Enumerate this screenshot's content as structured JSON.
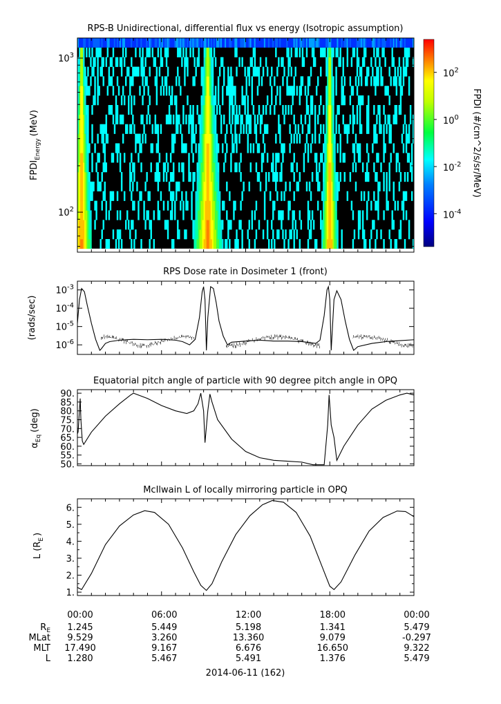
{
  "chart_data": [
    {
      "type": "heatmap",
      "title": "RPS-B  Unidirectional, differential flux vs energy (Isotropic assumption)",
      "ylabel_main": "FPDI",
      "ylabel_sub": "Energy",
      "ylabel_unit": "(MeV)",
      "yscale": "log",
      "ylim": [
        55,
        1350
      ],
      "yticks": [
        {
          "value": 100,
          "base": "10",
          "exp": "2"
        },
        {
          "value": 1000,
          "base": "10",
          "exp": "3"
        }
      ],
      "x_hours": [
        0,
        24
      ],
      "colorbar": {
        "label": "FPDI (#/cm^2/s/sr/MeV)",
        "scale": "log",
        "range_exp": [
          -5.4,
          3.4
        ],
        "ticks": [
          {
            "base": "10",
            "exp": "2",
            "value_exp": 2
          },
          {
            "base": "10",
            "exp": "0",
            "value_exp": 0
          },
          {
            "base": "10",
            "exp": "-2",
            "value_exp": -2
          },
          {
            "base": "10",
            "exp": "-4",
            "value_exp": -4
          }
        ]
      },
      "flux_features": [
        {
          "name": "",
          "start_hour": 0.0,
          "peak_hour": 0.3,
          "end_hour": 1.5
        },
        {
          "name": "",
          "start_hour": 8.2,
          "peak_hour": 9.3,
          "end_hour": 10.3
        },
        {
          "name": "",
          "start_hour": 17.5,
          "peak_hour": 18.0,
          "end_hour": 18.7
        }
      ]
    },
    {
      "type": "line",
      "title": "RPS  Dose rate in Dosimeter 1 (front)",
      "ylabel": "(rads/sec)",
      "yscale": "log",
      "ylim": [
        3e-07,
        0.003
      ],
      "yticks": [
        {
          "base": "10",
          "exp": "-6",
          "value_exp": -6
        },
        {
          "base": "10",
          "exp": "-5",
          "value_exp": -5
        },
        {
          "base": "10",
          "exp": "-4",
          "value_exp": -4
        },
        {
          "base": "10",
          "exp": "-3",
          "value_exp": -3
        }
      ],
      "x": [
        0,
        0.15,
        0.3,
        0.5,
        0.7,
        1.0,
        1.3,
        1.6,
        1.7,
        2.0,
        2.3,
        3,
        4,
        5,
        6,
        7,
        7.5,
        8.0,
        8.4,
        8.7,
        8.9,
        9.0,
        9.1,
        9.2,
        9.3,
        9.5,
        9.7,
        9.9,
        10.1,
        10.4,
        10.7,
        11.0,
        12,
        13,
        14,
        15,
        16,
        17.0,
        17.3,
        17.6,
        17.8,
        17.9,
        18.0,
        18.1,
        18.3,
        18.5,
        18.8,
        19.1,
        19.4,
        19.7,
        20,
        21,
        22,
        23,
        24
      ],
      "y": [
        1.5e-05,
        0.0003,
        0.0012,
        0.0008,
        0.00015,
        1.5e-05,
        2e-06,
        5e-07,
        6e-07,
        1.2e-06,
        1.5e-06,
        1.8e-06,
        2e-06,
        1.9e-06,
        2e-06,
        1.8e-06,
        1.5e-06,
        1e-06,
        2e-06,
        3e-05,
        0.0008,
        0.0015,
        0.0003,
        5e-07,
        3e-05,
        0.0015,
        0.0012,
        0.0002,
        2e-05,
        3e-06,
        1e-06,
        1.4e-06,
        1.6e-06,
        1.8e-06,
        1.6e-06,
        1.6e-06,
        1.5e-06,
        1.2e-06,
        1.8e-06,
        4e-05,
        0.001,
        0.0015,
        0.0003,
        5e-07,
        0.0003,
        0.0009,
        0.0003,
        2e-05,
        2e-06,
        5e-07,
        8e-07,
        1.2e-06,
        1.5e-06,
        1.7e-06,
        1.9e-06
      ]
    },
    {
      "type": "line",
      "title": "Equatorial pitch angle of particle with 90 degree pitch angle in OPQ",
      "ylabel_main": "α",
      "ylabel_sub": "Eq",
      "ylabel_unit": "(deg)",
      "ylim": [
        49,
        92
      ],
      "yticks": [
        50.0,
        55.0,
        60.0,
        65.0,
        70.0,
        75.0,
        80.0,
        85.0,
        90.0
      ],
      "ytick_labels": [
        "50.",
        "55.",
        "60.",
        "65.",
        "70.",
        "75.",
        "80.",
        "85.",
        "90."
      ],
      "x": [
        0,
        0.05,
        0.2,
        0.25,
        0.35,
        0.45,
        1.0,
        2.0,
        3.0,
        3.8,
        4.0,
        5.0,
        6.0,
        7.0,
        7.8,
        8.3,
        8.6,
        8.8,
        9.0,
        9.1,
        9.3,
        9.45,
        9.6,
        10.0,
        11.0,
        12.0,
        13.0,
        14.0,
        15.0,
        16.0,
        16.8,
        17.6,
        17.85,
        17.95,
        18.1,
        18.3,
        18.5,
        19.0,
        20.0,
        21.0,
        22.0,
        23.0,
        23.5,
        24.0
      ],
      "y": [
        67,
        68,
        87,
        75,
        63,
        61,
        68,
        77,
        84,
        89,
        90,
        87,
        83,
        80,
        78.5,
        80,
        84,
        90,
        80,
        62,
        80,
        89.5,
        85,
        75,
        64,
        57,
        53.5,
        52,
        51.5,
        51,
        49.5,
        49.5,
        72,
        89,
        72,
        65,
        52,
        60,
        72,
        81,
        86,
        89,
        90,
        89
      ]
    },
    {
      "type": "line",
      "title": "McIlwain L of locally mirroring particle in OPQ",
      "ylabel_main": "L (R",
      "ylabel_sub": "E",
      "ylabel_unit": ")",
      "ylim": [
        0.8,
        6.5
      ],
      "yticks": [
        1.0,
        2.0,
        3.0,
        4.0,
        5.0,
        6.0
      ],
      "ytick_labels": [
        "1.",
        "2.",
        "3.",
        "4.",
        "5.",
        "6."
      ],
      "x": [
        0,
        0.3,
        1,
        2,
        3,
        4,
        4.8,
        5.5,
        6.5,
        7.5,
        8.3,
        8.8,
        9.2,
        9.6,
        10.3,
        11.3,
        12.3,
        13.2,
        13.9,
        14.7,
        15.6,
        16.6,
        17.5,
        18.0,
        18.3,
        18.8,
        19.8,
        20.8,
        21.8,
        22.8,
        23.4,
        24.0
      ],
      "y": [
        1.28,
        1.15,
        2.1,
        3.8,
        4.9,
        5.55,
        5.8,
        5.7,
        5.0,
        3.6,
        2.2,
        1.4,
        1.1,
        1.5,
        2.8,
        4.4,
        5.5,
        6.15,
        6.4,
        6.3,
        5.7,
        4.3,
        2.4,
        1.35,
        1.15,
        1.6,
        3.2,
        4.6,
        5.4,
        5.78,
        5.75,
        5.45
      ]
    }
  ],
  "x_axis": {
    "date_label": "2014-06-11 (162)",
    "ephemeris_row_labels": [
      "R_E",
      "MLat",
      "MLT",
      "L"
    ],
    "ticks": [
      {
        "hour": 0,
        "time": "00:00",
        "re": "1.245",
        "mlat": "9.529",
        "mlt": "17.490",
        "l": "1.280"
      },
      {
        "hour": 6,
        "time": "06:00",
        "re": "5.449",
        "mlat": "3.260",
        "mlt": "9.167",
        "l": "5.467"
      },
      {
        "hour": 12,
        "time": "12:00",
        "re": "5.198",
        "mlat": "13.360",
        "mlt": "6.676",
        "l": "5.491"
      },
      {
        "hour": 18,
        "time": "18:00",
        "re": "1.341",
        "mlat": "9.079",
        "mlt": "16.650",
        "l": "1.376"
      },
      {
        "hour": 24,
        "time": "00:00",
        "re": "5.479",
        "mlat": "-0.297",
        "mlt": "9.322",
        "l": "5.479"
      }
    ]
  }
}
